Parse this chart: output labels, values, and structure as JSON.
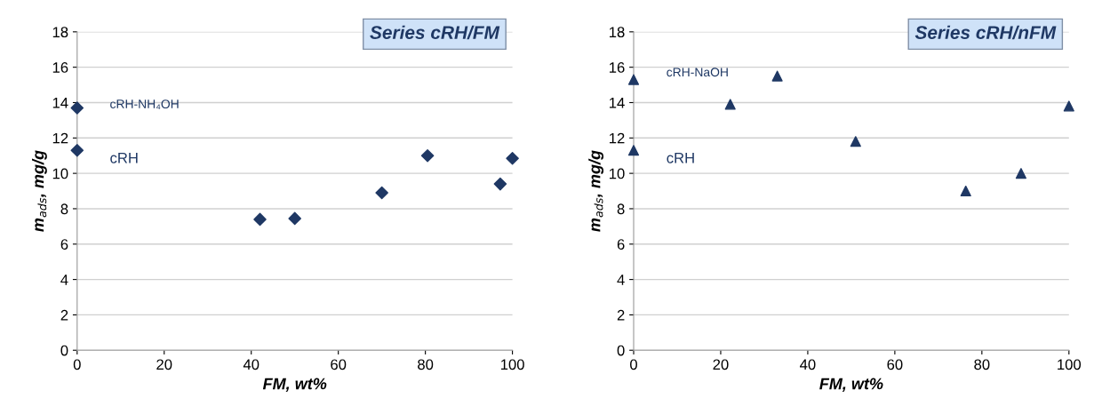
{
  "chart_data": [
    {
      "type": "scatter",
      "title": "Series cRH/FM",
      "xlabel": "FM, wt%",
      "ylabel": "m$_{ads}$, mg/g",
      "series": [
        {
          "color": "#1f3864",
          "x": [
            0,
            0,
            42,
            50,
            70,
            80.5,
            97.2,
            100
          ],
          "values": [
            13.7,
            11.3,
            7.4,
            7.45,
            8.9,
            11.0,
            9.4,
            10.85
          ]
        }
      ],
      "marker": "diamond",
      "xlim": [
        0,
        100
      ],
      "xticks": [
        0,
        20,
        40,
        60,
        80,
        100
      ],
      "ylim": [
        0,
        18
      ],
      "yticks": [
        0,
        2,
        4,
        6,
        8,
        10,
        12,
        14,
        16,
        18
      ],
      "grid": "y",
      "annotations": [
        "cRH-NH₄OH",
        "cRH"
      ]
    },
    {
      "type": "scatter",
      "title": "Series cRH/nFM",
      "xlabel": "FM, wt%",
      "ylabel": "m$_{ads}$, mg/g",
      "series": [
        {
          "color": "#1f3864",
          "x": [
            0,
            0,
            22.2,
            33,
            51,
            76.3,
            89,
            100
          ],
          "values": [
            15.3,
            11.3,
            13.9,
            15.5,
            11.8,
            9.0,
            10.0,
            13.8
          ]
        }
      ],
      "marker": "triangle",
      "xlim": [
        0,
        100
      ],
      "xticks": [
        0,
        20,
        40,
        60,
        80,
        100
      ],
      "ylim": [
        0,
        18
      ],
      "yticks": [
        0,
        2,
        4,
        6,
        8,
        10,
        12,
        14,
        16,
        18
      ],
      "grid": "y",
      "annotations": [
        "cRH-NaOH",
        "cRH"
      ]
    }
  ]
}
